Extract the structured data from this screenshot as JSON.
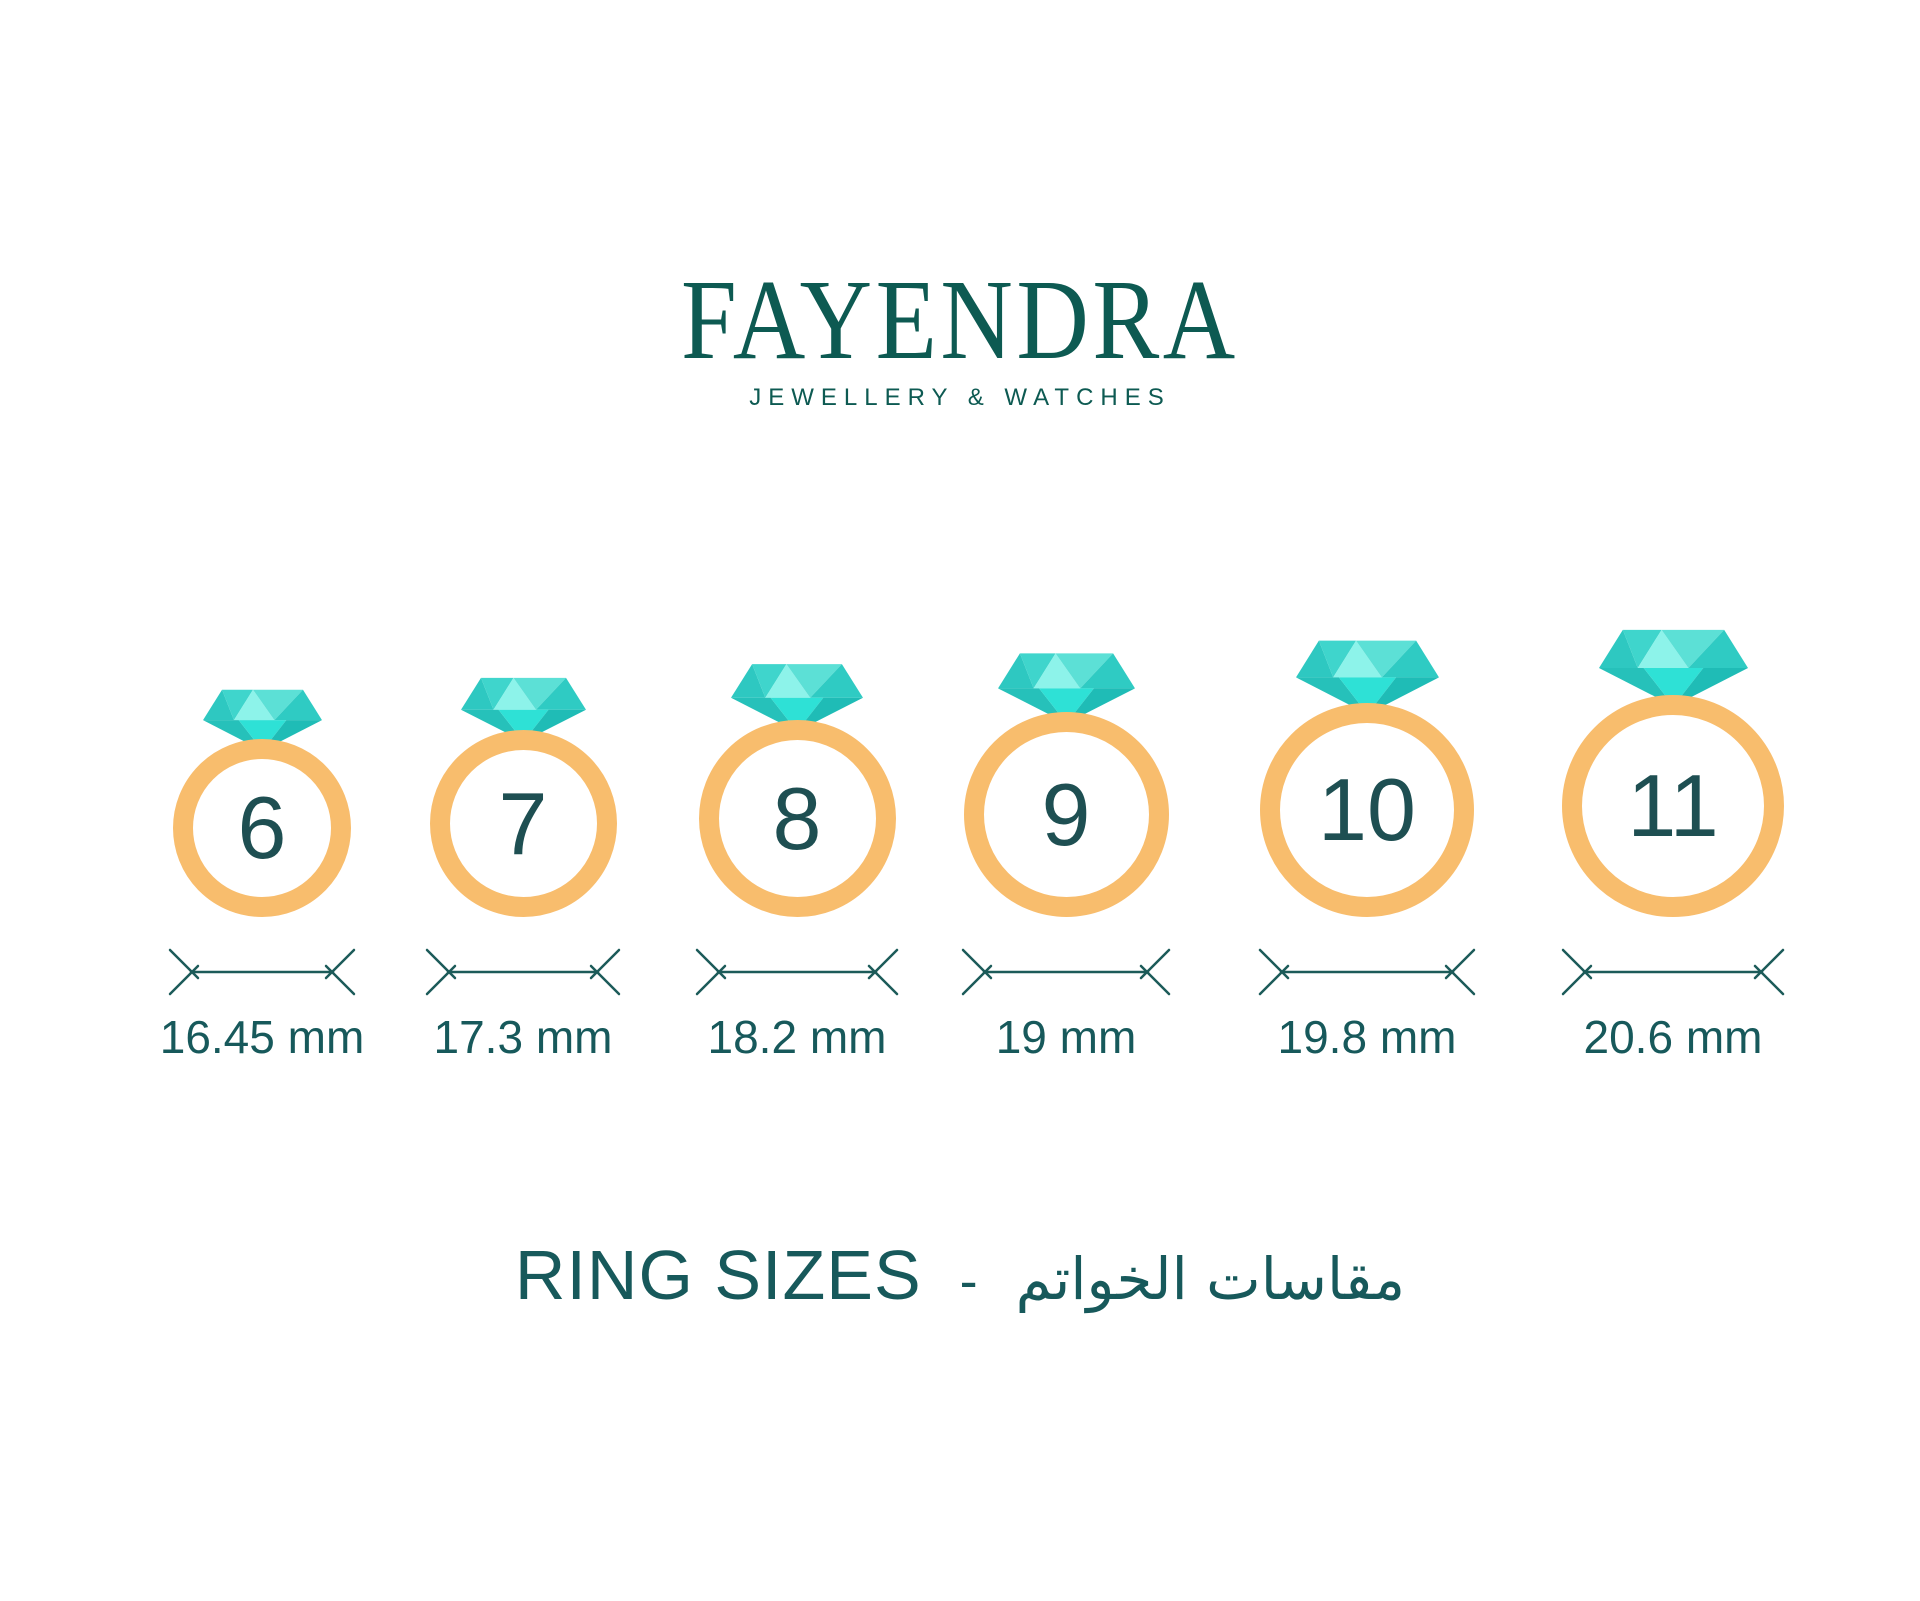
{
  "brand": {
    "name": "FAYENDRA",
    "tagline": "JEWELLERY & WATCHES"
  },
  "rings": [
    {
      "size": "6",
      "diameter_label": "16.45 mm",
      "diameter_mm": 16.45
    },
    {
      "size": "7",
      "diameter_label": "17.3 mm",
      "diameter_mm": 17.3
    },
    {
      "size": "8",
      "diameter_label": "18.2 mm",
      "diameter_mm": 18.2
    },
    {
      "size": "9",
      "diameter_label": "19 mm",
      "diameter_mm": 19
    },
    {
      "size": "10",
      "diameter_label": "19.8 mm",
      "diameter_mm": 19.8
    },
    {
      "size": "11",
      "diameter_label": "20.6 mm",
      "diameter_mm": 20.6
    }
  ],
  "title": {
    "english": "RING SIZES",
    "separator": "-",
    "arabic": "مقاسات الخواتم"
  },
  "colors": {
    "logo_teal": "#0d5a52",
    "text_teal": "#17595b",
    "digit_teal": "#1e4f52",
    "line_teal": "#1c5b59",
    "band_gold": "#f8bd6d",
    "diamond": {
      "left_corner": "#2ec8c1",
      "left_mid": "#3fd5cc",
      "center_light": "#8df3ea",
      "right_mid": "#5ce0d6",
      "right_corner": "#2fcbc3",
      "pavilion_left": "#26c1ba",
      "pavilion_center": "#2ee1d6",
      "pavilion_right": "#1fbcb6"
    }
  }
}
